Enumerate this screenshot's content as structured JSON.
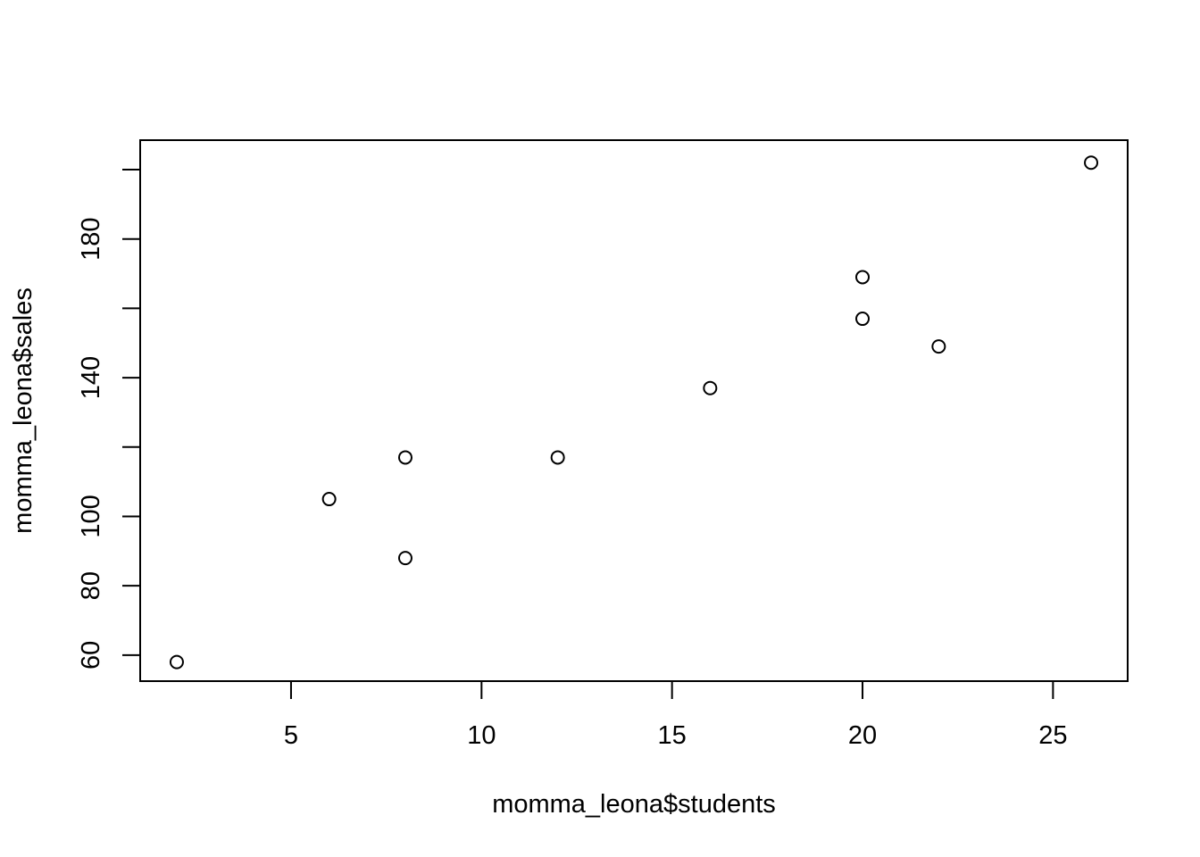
{
  "chart_data": {
    "type": "scatter",
    "title": "",
    "xlabel": "momma_leona$students",
    "ylabel": "momma_leona$sales",
    "xlim": [
      1.04,
      26.96
    ],
    "ylim": [
      52.5,
      208.5
    ],
    "x_ticks": [
      5,
      10,
      15,
      20,
      25
    ],
    "x_tick_labels": [
      "5",
      "10",
      "15",
      "20",
      "25"
    ],
    "y_ticks": [
      60,
      80,
      100,
      120,
      140,
      160,
      180,
      200
    ],
    "y_tick_labels": [
      "60",
      "80",
      "100",
      "",
      "140",
      "",
      "180",
      ""
    ],
    "grid": false,
    "legend": "none",
    "color": "#000000",
    "points": [
      {
        "x": 2,
        "y": 58
      },
      {
        "x": 6,
        "y": 105
      },
      {
        "x": 8,
        "y": 88
      },
      {
        "x": 8,
        "y": 117
      },
      {
        "x": 12,
        "y": 117
      },
      {
        "x": 16,
        "y": 137
      },
      {
        "x": 20,
        "y": 157
      },
      {
        "x": 20,
        "y": 169
      },
      {
        "x": 22,
        "y": 149
      },
      {
        "x": 26,
        "y": 202
      }
    ]
  }
}
